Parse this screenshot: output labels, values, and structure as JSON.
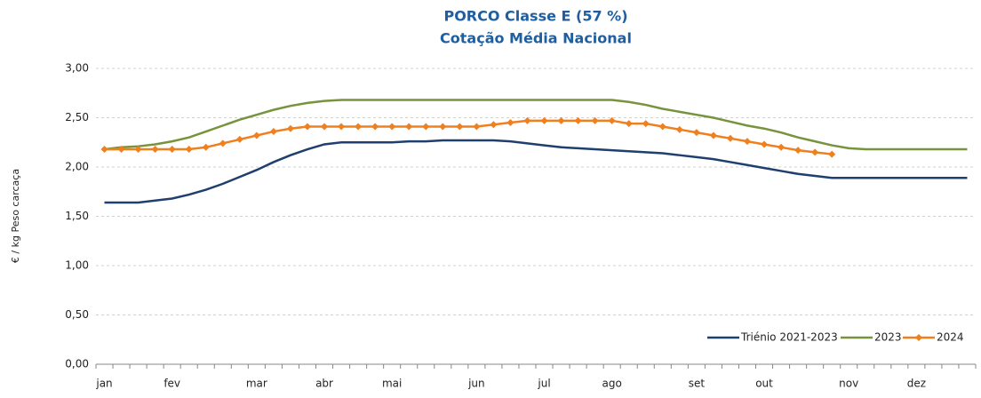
{
  "chart_data": {
    "type": "line",
    "title": "PORCO Classe E (57 %)",
    "subtitle": "Cotação Média Nacional",
    "y_label": "€ / kg Peso carcaça",
    "categories": [
      "jan",
      null,
      null,
      null,
      "fev",
      null,
      null,
      null,
      null,
      "mar",
      null,
      null,
      null,
      "abr",
      null,
      null,
      null,
      "mai",
      null,
      null,
      null,
      null,
      "jun",
      null,
      null,
      null,
      "jul",
      null,
      null,
      null,
      "ago",
      null,
      null,
      null,
      null,
      "set",
      null,
      null,
      null,
      "out",
      null,
      null,
      null,
      null,
      "nov",
      null,
      null,
      null,
      "dez",
      null,
      null,
      null
    ],
    "series": [
      {
        "name": "Triénio 2021-2023",
        "color": "#1f3f6e",
        "marker": false,
        "values": [
          1.64,
          1.64,
          1.64,
          1.66,
          1.68,
          1.72,
          1.77,
          1.83,
          1.9,
          1.97,
          2.05,
          2.12,
          2.18,
          2.23,
          2.25,
          2.25,
          2.25,
          2.25,
          2.26,
          2.26,
          2.27,
          2.27,
          2.27,
          2.27,
          2.26,
          2.24,
          2.22,
          2.2,
          2.19,
          2.18,
          2.17,
          2.16,
          2.15,
          2.14,
          2.12,
          2.1,
          2.08,
          2.05,
          2.02,
          1.99,
          1.96,
          1.93,
          1.91,
          1.89,
          1.89,
          1.89,
          1.89,
          1.89,
          1.89,
          1.89,
          1.89,
          1.89
        ]
      },
      {
        "name": "2023",
        "color": "#77933c",
        "marker": false,
        "values": [
          2.18,
          2.2,
          2.21,
          2.23,
          2.26,
          2.3,
          2.36,
          2.42,
          2.48,
          2.53,
          2.58,
          2.62,
          2.65,
          2.67,
          2.68,
          2.68,
          2.68,
          2.68,
          2.68,
          2.68,
          2.68,
          2.68,
          2.68,
          2.68,
          2.68,
          2.68,
          2.68,
          2.68,
          2.68,
          2.68,
          2.68,
          2.66,
          2.63,
          2.59,
          2.56,
          2.53,
          2.5,
          2.46,
          2.42,
          2.39,
          2.35,
          2.3,
          2.26,
          2.22,
          2.19,
          2.18,
          2.18,
          2.18,
          2.18,
          2.18,
          2.18,
          2.18
        ]
      },
      {
        "name": "2024",
        "color": "#f07f1e",
        "marker": true,
        "values": [
          2.18,
          2.18,
          2.18,
          2.18,
          2.18,
          2.18,
          2.2,
          2.24,
          2.28,
          2.32,
          2.36,
          2.39,
          2.41,
          2.41,
          2.41,
          2.41,
          2.41,
          2.41,
          2.41,
          2.41,
          2.41,
          2.41,
          2.41,
          2.43,
          2.45,
          2.47,
          2.47,
          2.47,
          2.47,
          2.47,
          2.47,
          2.44,
          2.44,
          2.41,
          2.38,
          2.35,
          2.32,
          2.29,
          2.26,
          2.23,
          2.2,
          2.17,
          2.15,
          2.13,
          null,
          null,
          null,
          null,
          null,
          null,
          null,
          null
        ]
      }
    ],
    "ylim": [
      0,
      3
    ],
    "yticks": [
      {
        "value": 0,
        "label": "0,00"
      },
      {
        "value": 0.5,
        "label": "0,50"
      },
      {
        "value": 1,
        "label": "1,00"
      },
      {
        "value": 1.5,
        "label": "1,50"
      },
      {
        "value": 2,
        "label": "2,00"
      },
      {
        "value": 2.5,
        "label": "2,50"
      },
      {
        "value": 3,
        "label": "3,00"
      }
    ],
    "grid": true,
    "legend": "bottom-right"
  }
}
